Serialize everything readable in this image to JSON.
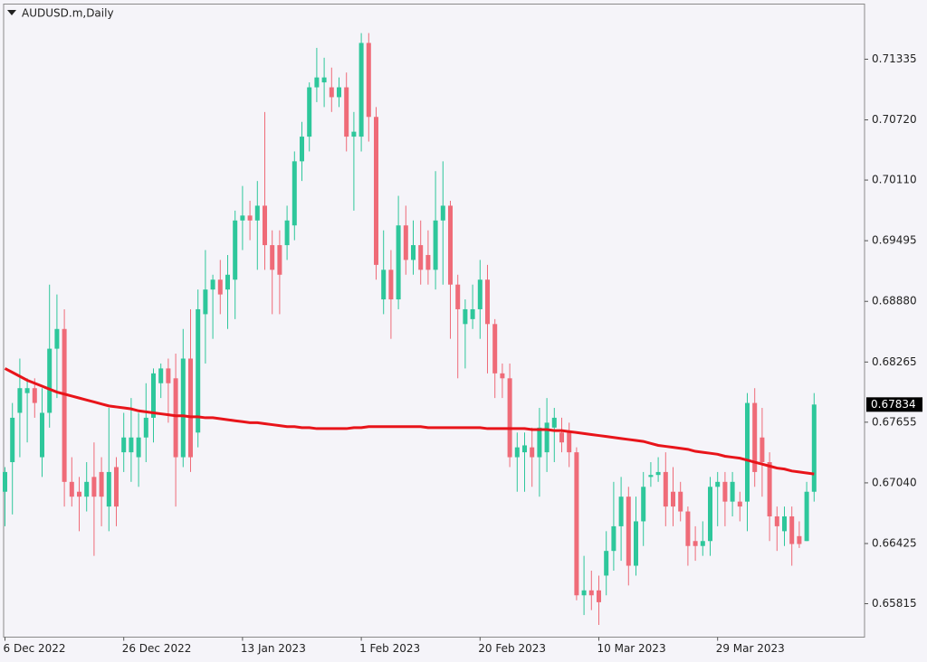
{
  "chart_data": {
    "type": "candlestick",
    "title": "AUDUSD.m,Daily",
    "categories": [
      "6 Dec 2022",
      null,
      null,
      null,
      null,
      null,
      null,
      null,
      null,
      null,
      null,
      null,
      null,
      null,
      null,
      null,
      "26 Dec 2022",
      null,
      null,
      null,
      null,
      null,
      null,
      null,
      null,
      null,
      null,
      null,
      null,
      null,
      null,
      null,
      "13 Jan 2023",
      null,
      null,
      null,
      null,
      null,
      null,
      null,
      null,
      null,
      null,
      null,
      null,
      null,
      null,
      null,
      "1 Feb 2023",
      null,
      null,
      null,
      null,
      null,
      null,
      null,
      null,
      null,
      null,
      null,
      null,
      null,
      null,
      null,
      "20 Feb 2023",
      null,
      null,
      null,
      null,
      null,
      null,
      null,
      null,
      null,
      null,
      null,
      null,
      null,
      null,
      null,
      "10 Mar 2023",
      null,
      null,
      null,
      null,
      null,
      null,
      null,
      null,
      null,
      null,
      null,
      null,
      null,
      null,
      null,
      "29 Mar 2023",
      null,
      null,
      null,
      null,
      null,
      null,
      null,
      null,
      null,
      null,
      null,
      null,
      null
    ],
    "open": [
      0.6695,
      0.6725,
      0.6775,
      0.6795,
      0.68,
      0.673,
      0.6775,
      0.684,
      0.686,
      0.6705,
      0.6695,
      0.669,
      0.671,
      0.6715,
      0.668,
      0.672,
      0.6735,
      0.6735,
      0.673,
      0.675,
      0.677,
      0.6805,
      0.682,
      0.681,
      0.673,
      0.683,
      0.6755,
      0.6875,
      0.69,
      0.691,
      0.69,
      0.691,
      0.697,
      0.6975,
      0.697,
      0.6985,
      0.6945,
      0.6945,
      0.6945,
      0.6965,
      0.703,
      0.7055,
      0.7105,
      0.711,
      0.7105,
      0.7095,
      0.7105,
      0.7055,
      0.7055,
      0.715,
      0.7075,
      0.689,
      0.692,
      0.689,
      0.6965,
      0.693,
      0.6945,
      0.6935,
      0.692,
      0.697,
      0.6985,
      0.6905,
      0.6865,
      0.687,
      0.688,
      0.691,
      0.6865,
      0.6815,
      0.681,
      0.673,
      0.6735,
      0.674,
      0.673,
      0.6735,
      0.676,
      0.6755,
      0.6755,
      0.6735,
      0.659,
      0.6595,
      0.6595,
      0.661,
      0.6635,
      0.666,
      0.669,
      0.662,
      0.6665,
      0.671,
      0.6712,
      0.6715,
      0.6695,
      0.6695,
      0.6675,
      0.6645,
      0.664,
      0.6645,
      0.67,
      0.6705,
      0.6685,
      0.6685,
      0.6685,
      0.6785,
      0.675,
      0.6725,
      0.667,
      0.6655,
      0.667,
      0.665,
      0.6645,
      0.6695
    ],
    "high": [
      0.672,
      0.6785,
      0.683,
      0.681,
      0.681,
      0.68,
      0.6905,
      0.6895,
      0.688,
      0.673,
      0.671,
      0.6725,
      0.6745,
      0.673,
      0.678,
      0.673,
      0.6775,
      0.679,
      0.6775,
      0.6805,
      0.682,
      0.6825,
      0.683,
      0.6835,
      0.686,
      0.688,
      0.69,
      0.694,
      0.6915,
      0.693,
      0.6935,
      0.698,
      0.7005,
      0.699,
      0.701,
      0.708,
      0.696,
      0.696,
      0.6985,
      0.704,
      0.707,
      0.711,
      0.7145,
      0.7135,
      0.7125,
      0.7115,
      0.712,
      0.708,
      0.716,
      0.716,
      0.7085,
      0.696,
      0.694,
      0.6995,
      0.6985,
      0.697,
      0.697,
      0.696,
      0.702,
      0.703,
      0.699,
      0.6915,
      0.689,
      0.6905,
      0.693,
      0.6925,
      0.687,
      0.6825,
      0.6825,
      0.6755,
      0.6755,
      0.676,
      0.678,
      0.679,
      0.678,
      0.677,
      0.6765,
      0.674,
      0.663,
      0.6615,
      0.661,
      0.6655,
      0.6705,
      0.671,
      0.67,
      0.669,
      0.6715,
      0.6725,
      0.673,
      0.6735,
      0.672,
      0.6705,
      0.668,
      0.666,
      0.6665,
      0.671,
      0.6715,
      0.6715,
      0.6715,
      0.6695,
      0.6795,
      0.68,
      0.678,
      0.6735,
      0.668,
      0.668,
      0.668,
      0.6665,
      0.6705,
      0.6795
    ],
    "low": [
      0.666,
      0.6672,
      0.673,
      0.6745,
      0.677,
      0.671,
      0.676,
      0.679,
      0.668,
      0.668,
      0.6655,
      0.6675,
      0.663,
      0.666,
      0.6655,
      0.666,
      0.6715,
      0.6705,
      0.67,
      0.6725,
      0.6745,
      0.679,
      0.6765,
      0.668,
      0.672,
      0.6715,
      0.674,
      0.6825,
      0.685,
      0.6875,
      0.686,
      0.687,
      0.694,
      0.695,
      0.692,
      0.692,
      0.6875,
      0.6875,
      0.693,
      0.695,
      0.701,
      0.704,
      0.709,
      0.7085,
      0.708,
      0.7085,
      0.704,
      0.698,
      0.704,
      0.705,
      0.691,
      0.6875,
      0.685,
      0.688,
      0.6915,
      0.6915,
      0.6905,
      0.6905,
      0.69,
      0.6905,
      0.685,
      0.681,
      0.682,
      0.686,
      0.685,
      0.6815,
      0.679,
      0.679,
      0.672,
      0.6695,
      0.6695,
      0.67,
      0.669,
      0.6715,
      0.6725,
      0.6735,
      0.672,
      0.6585,
      0.657,
      0.6575,
      0.656,
      0.659,
      0.6615,
      0.6625,
      0.66,
      0.661,
      0.664,
      0.67,
      0.6705,
      0.666,
      0.666,
      0.6665,
      0.662,
      0.6625,
      0.663,
      0.663,
      0.666,
      0.666,
      0.667,
      0.6665,
      0.6655,
      0.67,
      0.669,
      0.6645,
      0.6635,
      0.664,
      0.662,
      0.6638,
      0.6645,
      0.6685
    ],
    "close": [
      0.6715,
      0.677,
      0.68,
      0.68,
      0.6785,
      0.6775,
      0.684,
      0.686,
      0.6705,
      0.669,
      0.669,
      0.6705,
      0.669,
      0.669,
      0.6715,
      0.668,
      0.675,
      0.675,
      0.675,
      0.677,
      0.6815,
      0.682,
      0.6805,
      0.673,
      0.683,
      0.673,
      0.688,
      0.69,
      0.691,
      0.6895,
      0.6915,
      0.697,
      0.6975,
      0.697,
      0.6985,
      0.6945,
      0.692,
      0.6915,
      0.697,
      0.703,
      0.7055,
      0.7105,
      0.7115,
      0.7115,
      0.7095,
      0.7105,
      0.7055,
      0.706,
      0.715,
      0.7075,
      0.6925,
      0.692,
      0.689,
      0.6965,
      0.693,
      0.6945,
      0.692,
      0.692,
      0.697,
      0.6985,
      0.6905,
      0.688,
      0.688,
      0.688,
      0.691,
      0.6865,
      0.6815,
      0.681,
      0.673,
      0.674,
      0.6742,
      0.673,
      0.676,
      0.6765,
      0.677,
      0.6745,
      0.6735,
      0.659,
      0.6595,
      0.659,
      0.6583,
      0.6635,
      0.666,
      0.669,
      0.662,
      0.6665,
      0.67,
      0.6712,
      0.6715,
      0.668,
      0.668,
      0.6675,
      0.664,
      0.664,
      0.6645,
      0.67,
      0.6705,
      0.6685,
      0.6705,
      0.668,
      0.6785,
      0.6715,
      0.6725,
      0.667,
      0.666,
      0.667,
      0.6642,
      0.6642,
      0.6695,
      0.67834
    ],
    "up_color": "#2ec79b",
    "down_color": "#ef6b78",
    "ma": {
      "color": "#e8141a",
      "values": [
        0.682,
        0.6816,
        0.6812,
        0.6808,
        0.6805,
        0.6802,
        0.6799,
        0.6796,
        0.6794,
        0.6792,
        0.679,
        0.6788,
        0.6786,
        0.6784,
        0.6782,
        0.6781,
        0.678,
        0.6779,
        0.6777,
        0.6776,
        0.6775,
        0.6774,
        0.6773,
        0.6772,
        0.6772,
        0.6771,
        0.6771,
        0.677,
        0.677,
        0.6769,
        0.6768,
        0.6767,
        0.6766,
        0.6765,
        0.6765,
        0.6764,
        0.6763,
        0.6762,
        0.6761,
        0.6761,
        0.676,
        0.676,
        0.6759,
        0.6759,
        0.6759,
        0.6759,
        0.6759,
        0.676,
        0.676,
        0.6761,
        0.6761,
        0.6761,
        0.6761,
        0.6761,
        0.6761,
        0.6761,
        0.6761,
        0.676,
        0.676,
        0.676,
        0.676,
        0.676,
        0.676,
        0.676,
        0.676,
        0.6759,
        0.6759,
        0.6759,
        0.6759,
        0.6759,
        0.6759,
        0.6758,
        0.6758,
        0.6758,
        0.6757,
        0.6757,
        0.6756,
        0.6755,
        0.6754,
        0.6753,
        0.6752,
        0.6751,
        0.675,
        0.6749,
        0.6748,
        0.6747,
        0.6746,
        0.6744,
        0.6742,
        0.6741,
        0.674,
        0.6739,
        0.6738,
        0.6736,
        0.6735,
        0.6734,
        0.6733,
        0.6731,
        0.673,
        0.6729,
        0.6727,
        0.6725,
        0.6723,
        0.6721,
        0.6719,
        0.6718,
        0.6716,
        0.6715,
        0.6714,
        0.6713
      ]
    },
    "ylim": [
      0.65476,
      0.71894
    ],
    "yticks": [
      0.71335,
      {
        "value": 0.7072,
        "label": "0.70720"
      },
      {
        "value": 0.7011,
        "label": "0.70110"
      },
      0.69495,
      {
        "value": 0.6888,
        "label": "0.68880"
      },
      0.68265,
      0.67655,
      {
        "value": 0.6704,
        "label": "0.67040"
      },
      0.66425,
      0.65815
    ]
  }
}
